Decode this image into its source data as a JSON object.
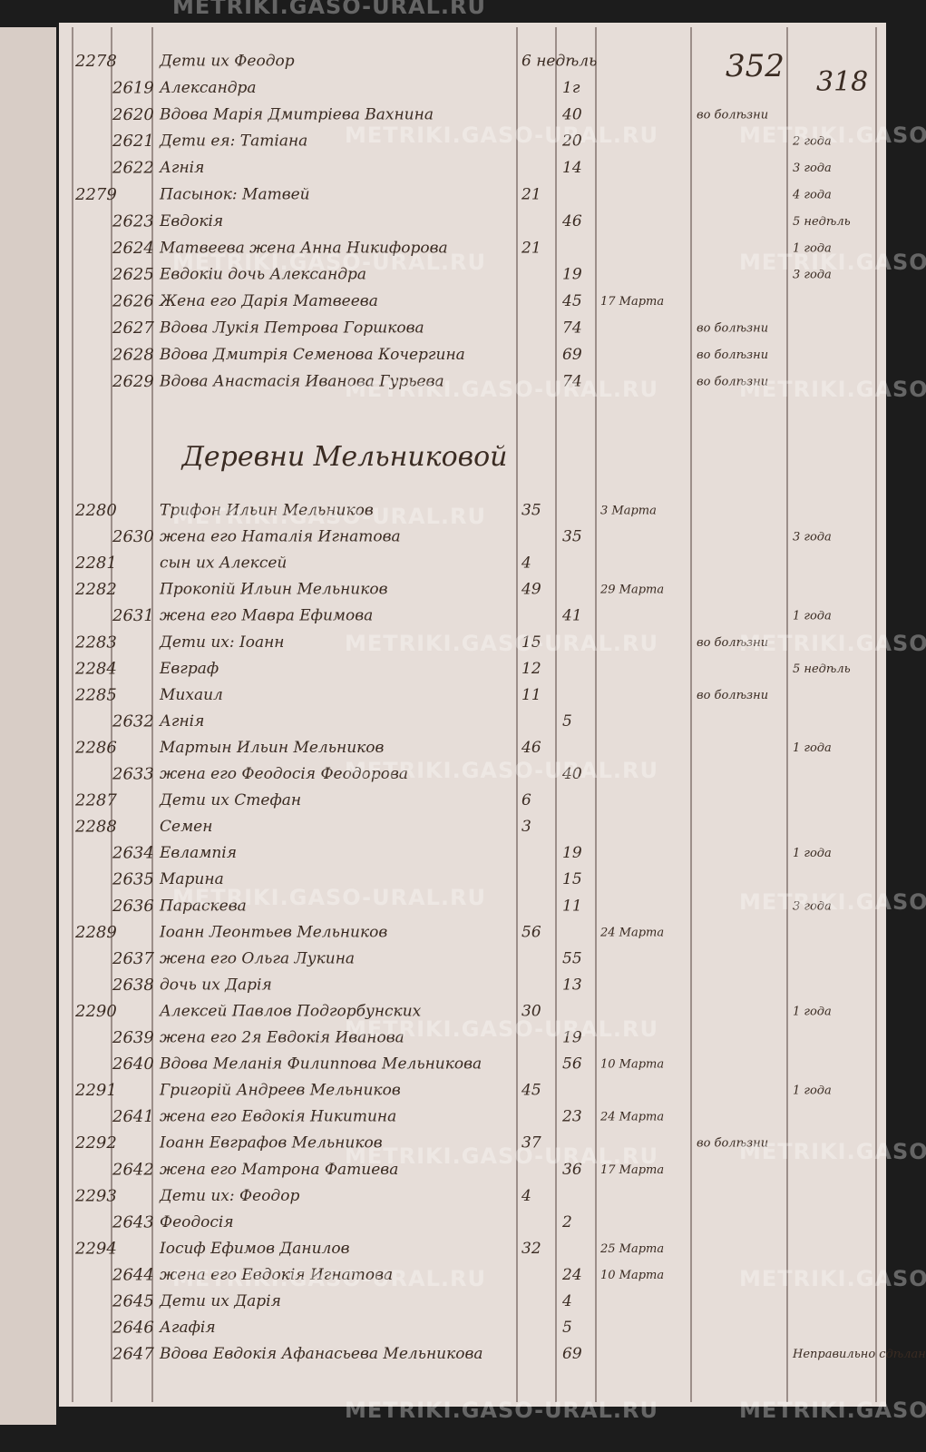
{
  "watermark": "METRIKI.GASO-URAL.RU",
  "page_numbers": {
    "stamped": "352",
    "old": "318"
  },
  "section_heading": "Деревни Мельниковой",
  "rows_top": [
    {
      "m_no": "2278",
      "name": "Дети их Феодор",
      "m_age": "6 недѣль"
    },
    {
      "f_no": "2619",
      "name": "Александра",
      "f_age": "1г"
    },
    {
      "f_no": "2620",
      "name": "Вдова Марія Дмитріева Вахнина",
      "f_age": "40",
      "note": "во болѣзни"
    },
    {
      "f_no": "2621",
      "name": "Дети ея: Татіана",
      "f_age": "20",
      "months": "2 года"
    },
    {
      "f_no": "2622",
      "name": "Агнія",
      "f_age": "14",
      "months": "3 года"
    },
    {
      "m_no": "2279",
      "name": "Пасынок: Матвей",
      "m_age": "21",
      "months": "4 года"
    },
    {
      "f_no": "2623",
      "name": "Евдокія",
      "f_age": "46",
      "months": "5 недѣль"
    },
    {
      "f_no": "2624",
      "name": "Матвеева жена Анна Никифорова",
      "m_age": "21",
      "months": "1 года"
    },
    {
      "f_no": "2625",
      "name": "Евдокіи дочь Александра",
      "f_age": "19",
      "months": "3 года"
    },
    {
      "f_no": "2626",
      "name": "Жена его Дарія Матвеева",
      "f_age": "45",
      "date": "17 Марта"
    },
    {
      "f_no": "2627",
      "name": "Вдова Лукія Петрова Горшкова",
      "f_age": "74",
      "note": "во болѣзни"
    },
    {
      "f_no": "2628",
      "name": "Вдова Дмитрія Семенова Кочергина",
      "f_age": "69",
      "note": "во болѣзни"
    },
    {
      "f_no": "2629",
      "name": "Вдова Анастасія Иванова Гурьева",
      "f_age": "74",
      "note": "во болѣзни"
    }
  ],
  "rows_bottom": [
    {
      "m_no": "2280",
      "name": "Трифон Ильин Мельников",
      "m_age": "35",
      "date": "3 Марта"
    },
    {
      "f_no": "2630",
      "name": "жена его Наталія Игнатова",
      "f_age": "35",
      "months": "3 года"
    },
    {
      "m_no": "2281",
      "name": "сын их Алексей",
      "m_age": "4"
    },
    {
      "m_no": "2282",
      "name": "Прокопій Ильин Мельников",
      "m_age": "49",
      "date": "29 Марта"
    },
    {
      "f_no": "2631",
      "name": "жена его Мавра Ефимова",
      "f_age": "41",
      "months": "1 года"
    },
    {
      "m_no": "2283",
      "name": "Дети их: Іоанн",
      "m_age": "15",
      "note": "во болѣзни"
    },
    {
      "m_no": "2284",
      "name": "Евграф",
      "m_age": "12",
      "months": "5 недѣль"
    },
    {
      "m_no": "2285",
      "name": "Михаил",
      "m_age": "11",
      "note": "во болѣзни"
    },
    {
      "f_no": "2632",
      "name": "Агнія",
      "f_age": "5"
    },
    {
      "m_no": "2286",
      "name": "Мартын Ильин Мельников",
      "m_age": "46",
      "months": "1 года"
    },
    {
      "f_no": "2633",
      "name": "жена его Феодосія Феодорова",
      "f_age": "40"
    },
    {
      "m_no": "2287",
      "name": "Дети их Стефан",
      "m_age": "6"
    },
    {
      "m_no": "2288",
      "name": "Семен",
      "m_age": "3"
    },
    {
      "f_no": "2634",
      "name": "Евлампія",
      "f_age": "19",
      "months": "1 года"
    },
    {
      "f_no": "2635",
      "name": "Марина",
      "f_age": "15"
    },
    {
      "f_no": "2636",
      "name": "Параскева",
      "f_age": "11",
      "months": "3 года"
    },
    {
      "m_no": "2289",
      "name": "Іоанн Леонтьев Мельников",
      "m_age": "56",
      "date": "24 Марта"
    },
    {
      "f_no": "2637",
      "name": "жена его Ольга Лукина",
      "f_age": "55"
    },
    {
      "f_no": "2638",
      "name": "дочь их Дарія",
      "f_age": "13"
    },
    {
      "m_no": "2290",
      "name": "Алексей Павлов Подгорбунских",
      "m_age": "30",
      "months": "1 года"
    },
    {
      "f_no": "2639",
      "name": "жена его 2я Евдокія Иванова",
      "f_age": "19"
    },
    {
      "f_no": "2640",
      "name": "Вдова Меланія Филиппова Мельникова",
      "f_age": "56",
      "date": "10 Марта"
    },
    {
      "m_no": "2291",
      "name": "Григорій Андреев Мельников",
      "m_age": "45",
      "months": "1 года"
    },
    {
      "f_no": "2641",
      "name": "жена его Евдокія Никитина",
      "f_age": "23",
      "date": "24 Марта"
    },
    {
      "m_no": "2292",
      "name": "Іоанн Евграфов Мельников",
      "m_age": "37",
      "note": "во болѣзни"
    },
    {
      "f_no": "2642",
      "name": "жена его Матрона Фатиева",
      "f_age": "36",
      "date": "17 Марта"
    },
    {
      "m_no": "2293",
      "name": "Дети их: Феодор",
      "m_age": "4"
    },
    {
      "f_no": "2643",
      "name": "Феодосія",
      "f_age": "2"
    },
    {
      "m_no": "2294",
      "name": "Іосиф Ефимов Данилов",
      "m_age": "32",
      "date": "25 Марта"
    },
    {
      "f_no": "2644",
      "name": "жена его Евдокія Игнатова",
      "f_age": "24",
      "date": "10 Марта"
    },
    {
      "f_no": "2645",
      "name": "Дети их Дарія",
      "f_age": "4"
    },
    {
      "f_no": "2646",
      "name": "Агафія",
      "f_age": "5"
    },
    {
      "f_no": "2647",
      "name": "Вдова Евдокія Афанасьева Мельникова",
      "f_age": "69",
      "months": "Неправильно сдѣлано"
    }
  ]
}
